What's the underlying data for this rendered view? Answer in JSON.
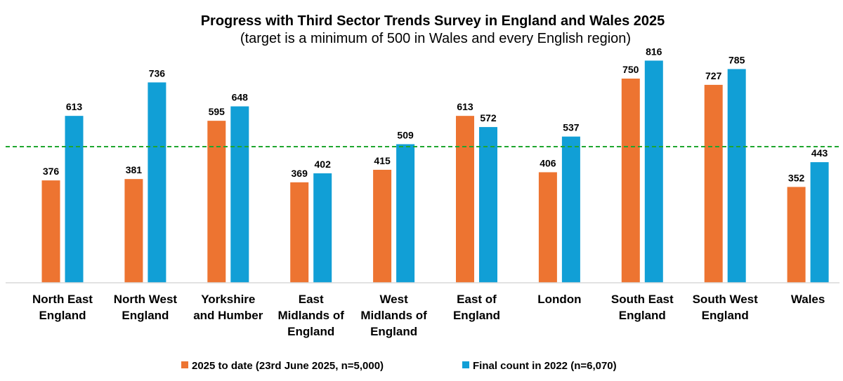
{
  "chart_data": {
    "type": "bar",
    "title": "Progress with Third Sector Trends Survey in England and Wales 2025",
    "subtitle": "(target is a minimum of 500 in Wales and every English region)",
    "categories": [
      [
        "North East",
        "England"
      ],
      [
        "North West",
        "England"
      ],
      [
        "Yorkshire",
        "and Humber"
      ],
      [
        "East",
        "Midlands of",
        "England"
      ],
      [
        "West",
        "Midlands of",
        "England"
      ],
      [
        "East of",
        "England"
      ],
      [
        "London"
      ],
      [
        "South East",
        "England"
      ],
      [
        "South West",
        "England"
      ],
      [
        "Wales"
      ]
    ],
    "series": [
      {
        "name": "2025 to date (23rd June 2025, n=5,000)",
        "color": "#ED7431",
        "values": [
          376,
          381,
          595,
          369,
          415,
          613,
          406,
          750,
          727,
          352
        ]
      },
      {
        "name": "Final count in 2022 (n=6,070)",
        "color": "#119FD6",
        "values": [
          613,
          736,
          648,
          402,
          509,
          572,
          537,
          816,
          785,
          443
        ]
      }
    ],
    "target_line": {
      "value": 500,
      "color": "#1FA62F",
      "style": "dashed"
    },
    "ylim": [
      0,
      850
    ],
    "grid": false,
    "xlabel": "",
    "ylabel": "",
    "legend": "bottom"
  }
}
